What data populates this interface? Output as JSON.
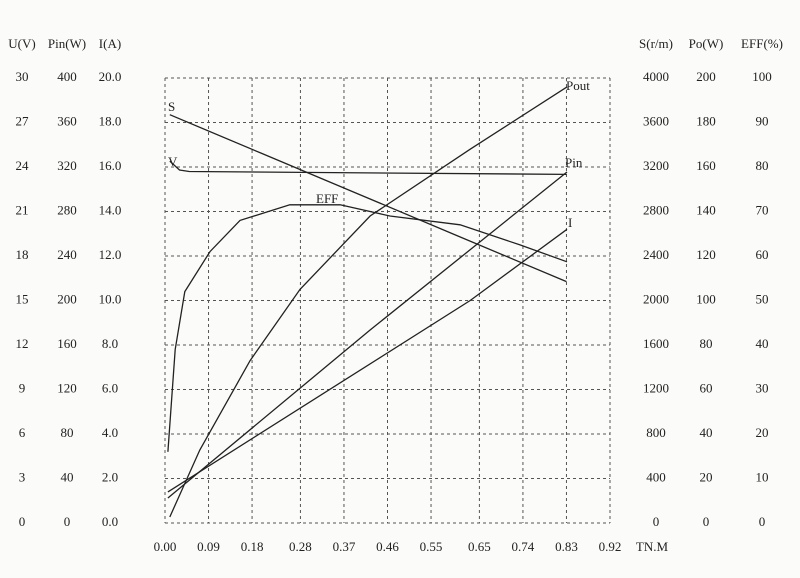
{
  "chart_data": {
    "type": "line",
    "x_label": "TN.M",
    "xlim": [
      0,
      0.92
    ],
    "xticks": [
      {
        "value": 0,
        "label": "0.00"
      },
      0.09,
      0.18,
      0.28,
      0.37,
      0.46,
      0.55,
      0.65,
      0.74,
      0.83,
      0.92
    ],
    "grid": true,
    "y_axes": [
      {
        "label": "U(V)",
        "lim": [
          0,
          30
        ],
        "ticks": [
          0,
          3,
          6,
          9,
          12,
          15,
          18,
          21,
          24,
          27,
          30
        ]
      },
      {
        "label": "Pin(W)",
        "lim": [
          0,
          400
        ],
        "ticks": [
          0,
          40,
          80,
          120,
          160,
          200,
          240,
          280,
          320,
          360,
          400
        ]
      },
      {
        "label": "I(A)",
        "lim": [
          0,
          20
        ],
        "ticks": [
          {
            "value": 0,
            "label": "0.0"
          },
          {
            "value": 2,
            "label": "2.0"
          },
          {
            "value": 4,
            "label": "4.0"
          },
          {
            "value": 6,
            "label": "6.0"
          },
          {
            "value": 8,
            "label": "8.0"
          },
          {
            "value": 10,
            "label": "10.0"
          },
          {
            "value": 12,
            "label": "12.0"
          },
          {
            "value": 14,
            "label": "14.0"
          },
          {
            "value": 16,
            "label": "16.0"
          },
          {
            "value": 18,
            "label": "18.0"
          },
          {
            "value": 20,
            "label": "20.0"
          }
        ]
      },
      {
        "label": "S(r/m)",
        "lim": [
          0,
          4000
        ],
        "ticks": [
          0,
          400,
          800,
          1200,
          1600,
          2000,
          2400,
          2800,
          3200,
          3600,
          4000
        ]
      },
      {
        "label": "Po(W)",
        "lim": [
          0,
          200
        ],
        "ticks": [
          0,
          20,
          40,
          60,
          80,
          100,
          120,
          140,
          160,
          180,
          200
        ]
      },
      {
        "label": "EFF(%)",
        "lim": [
          0,
          100
        ],
        "ticks": [
          0,
          10,
          20,
          30,
          40,
          50,
          60,
          70,
          80,
          90,
          100
        ]
      }
    ],
    "series": [
      {
        "name": "S",
        "axis": 3,
        "color": "#222222",
        "x": [
          0.01,
          0.2,
          0.4,
          0.6,
          0.83
        ],
        "values": [
          3670,
          3322,
          2956,
          2590,
          2170
        ]
      },
      {
        "name": "V",
        "axis": 0,
        "color": "#222222",
        "x": [
          0.01,
          0.03,
          0.05,
          0.83
        ],
        "values": [
          24.4,
          23.8,
          23.7,
          23.5
        ]
      },
      {
        "name": "EFF",
        "axis": 5,
        "color": "#222222",
        "x": [
          0.006,
          0.021,
          0.041,
          0.093,
          0.155,
          0.258,
          0.362,
          0.465,
          0.61,
          0.734,
          0.831
        ],
        "values": [
          16,
          39,
          52,
          61,
          68,
          71.5,
          71.5,
          69,
          67,
          62.5,
          58.7
        ]
      },
      {
        "name": "Pout",
        "axis": 4,
        "color": "#222222",
        "x": [
          0.01,
          0.072,
          0.176,
          0.279,
          0.424,
          0.631,
          0.831
        ],
        "values": [
          2.7,
          32.8,
          73,
          105,
          138,
          168,
          196
        ]
      },
      {
        "name": "Pin",
        "axis": 1,
        "color": "#222222",
        "x": [
          0.006,
          0.424,
          0.831
        ],
        "values": [
          22.5,
          173.5,
          315.5
        ]
      },
      {
        "name": "I",
        "axis": 2,
        "color": "#222222",
        "x": [
          0.006,
          0.631,
          0.831
        ],
        "values": [
          1.4,
          10,
          13.2
        ]
      }
    ]
  }
}
